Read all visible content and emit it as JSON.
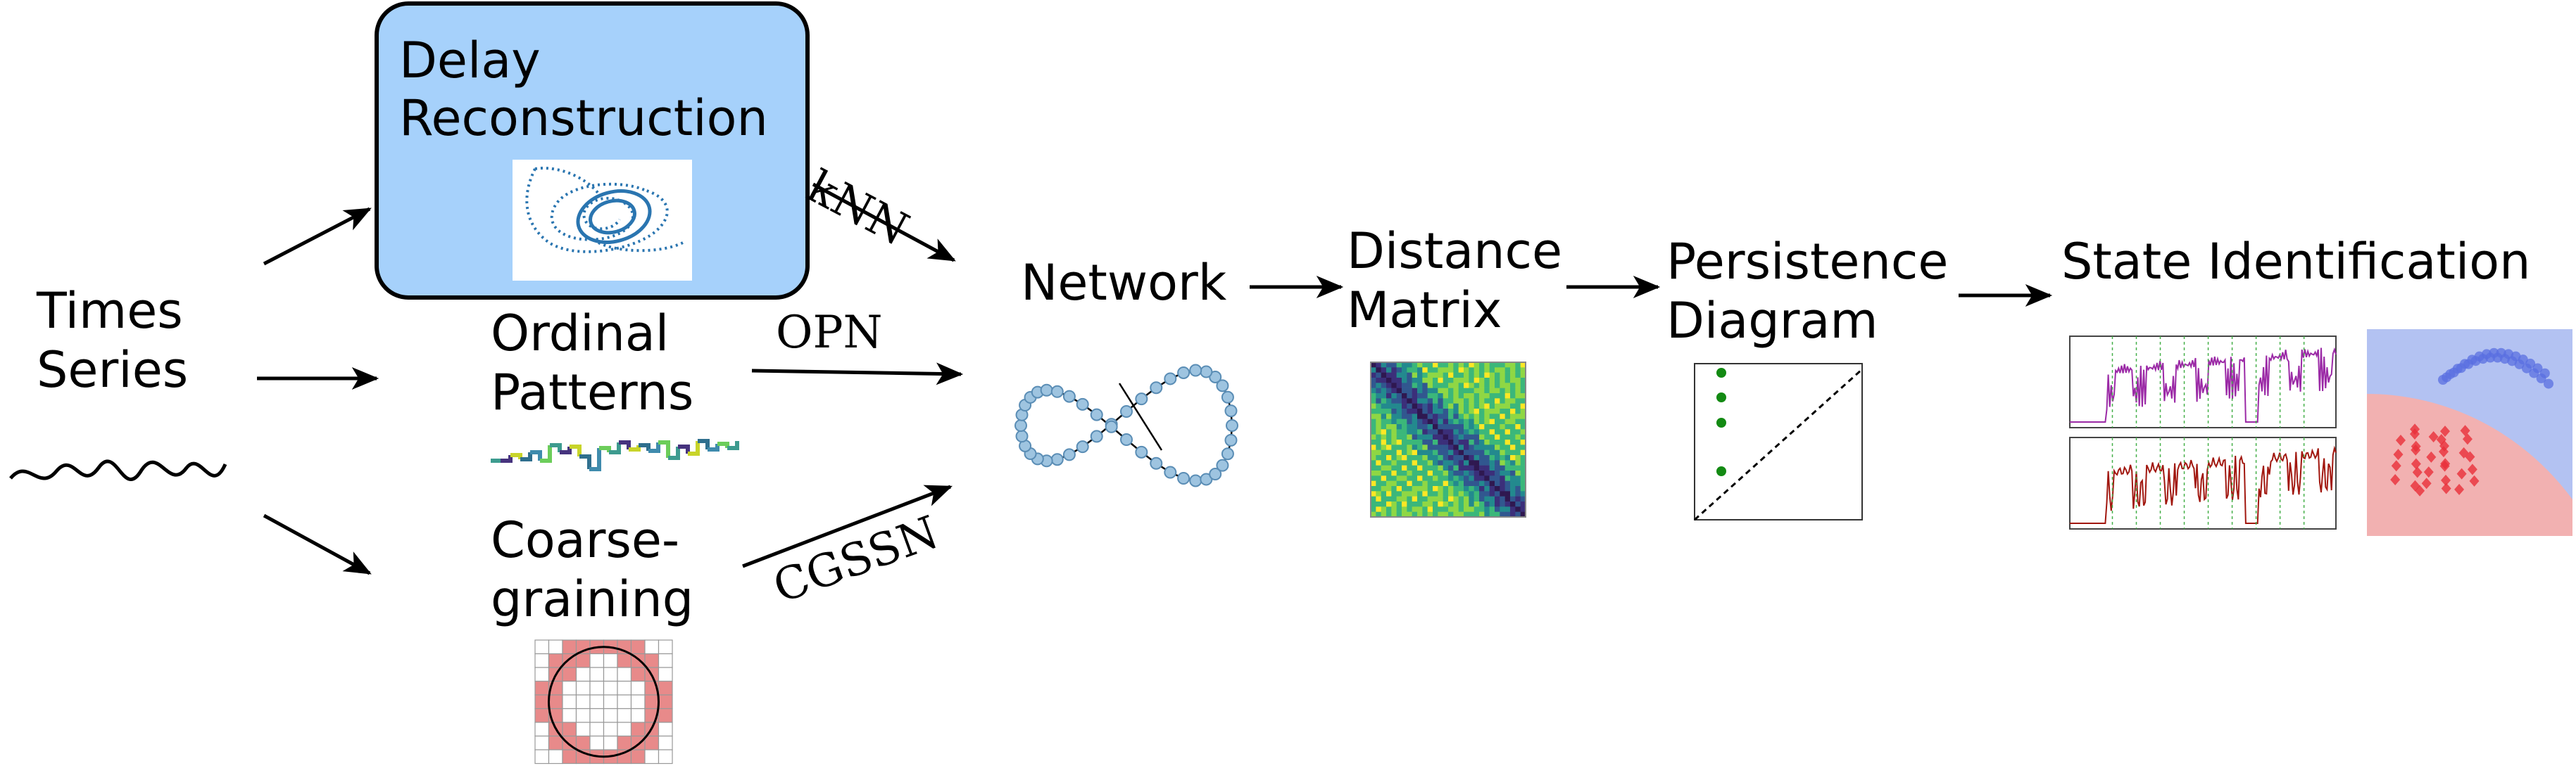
{
  "nodes": {
    "time_series": {
      "line1": "Times",
      "line2": "Series"
    },
    "delay_reconstruction": {
      "line1": "Delay",
      "line2": "Reconstruction"
    },
    "ordinal_patterns": {
      "line1": "Ordinal",
      "line2": "Patterns"
    },
    "coarse_graining": {
      "line1": "Coarse-",
      "line2": "graining"
    },
    "network": {
      "label": "Network"
    },
    "distance_matrix": {
      "line1": "Distance",
      "line2": "Matrix"
    },
    "persistence_diagram": {
      "line1": "Persistence",
      "line2": "Diagram"
    },
    "state_identification": {
      "label": "State Identification"
    }
  },
  "edges": {
    "knn": "kNN",
    "opn": "OPN",
    "cgssn": "CGSSN"
  },
  "colors": {
    "delay_box_fill": "#a6d1fb",
    "network_node": "#9ec4e0",
    "persistence_point": "#138a13",
    "heatmap_low": "#fde725",
    "heatmap_high": "#2f1850",
    "coarse_grid_fill": "#e88a8a",
    "class_blue_region": "#b3c2f2",
    "class_red_region": "#f2b1b1",
    "series_purple": "#9b2aa6",
    "series_red": "#a1170f"
  }
}
